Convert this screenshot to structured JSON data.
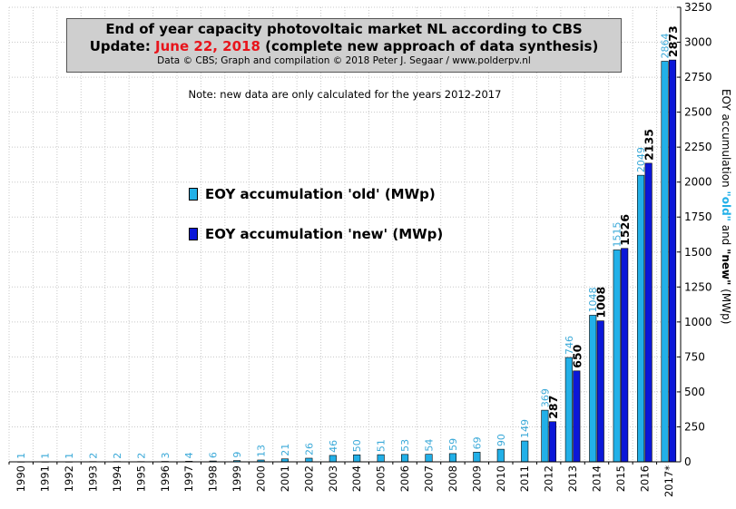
{
  "title": {
    "line1": "End of year capacity photovoltaic market NL according to CBS",
    "line2_prefix": "Update: ",
    "line2_highlight": "June 22, 2018",
    "line2_suffix": " (complete new approach of data synthesis)",
    "credit": "Data © CBS; Graph and compilation © 2018 Peter J. Segaar / www.polderpv.nl"
  },
  "note": "Note: new data are only calculated for the years 2012-2017",
  "legend": {
    "old": "EOY accumulation 'old' (MWp)",
    "new": "EOY accumulation 'new' (MWp)"
  },
  "colors": {
    "old": "#22b0e8",
    "new": "#0b17d8",
    "old_label": "#3aa9d8",
    "new_label": "#000000",
    "highlight": "#e8141b",
    "title_bg": "#cfcfcf"
  },
  "chart_data": {
    "type": "bar",
    "categories": [
      "1990",
      "1991",
      "1992",
      "1993",
      "1994",
      "1995",
      "1996",
      "1997",
      "1998",
      "1999",
      "2000",
      "2001",
      "2002",
      "2003",
      "2004",
      "2005",
      "2006",
      "2007",
      "2008",
      "2009",
      "2010",
      "2011",
      "2012",
      "2013",
      "2014",
      "2015",
      "2016",
      "2017*"
    ],
    "series": [
      {
        "name": "EOY accumulation 'old' (MWp)",
        "values": [
          1,
          1,
          1,
          2,
          2,
          2,
          3,
          4,
          6,
          9,
          13,
          21,
          26,
          46,
          50,
          51,
          53,
          54,
          59,
          69,
          90,
          149,
          369,
          746,
          1048,
          1515,
          2049,
          2864
        ]
      },
      {
        "name": "EOY accumulation 'new' (MWp)",
        "values": [
          null,
          null,
          null,
          null,
          null,
          null,
          null,
          null,
          null,
          null,
          null,
          null,
          null,
          null,
          null,
          null,
          null,
          null,
          null,
          null,
          null,
          null,
          287,
          650,
          1008,
          1526,
          2135,
          2873
        ]
      }
    ],
    "ylim": [
      0,
      3250
    ],
    "yticks": [
      0,
      250,
      500,
      750,
      1000,
      1250,
      1500,
      1750,
      2000,
      2250,
      2500,
      2750,
      3000,
      3250
    ],
    "ylabel_parts": [
      "EOY accumulation ",
      "\"old\"",
      " and ",
      "\"new\"",
      " (MWp)"
    ],
    "xlabel": "",
    "grid": true,
    "legend_position": "left-center"
  }
}
